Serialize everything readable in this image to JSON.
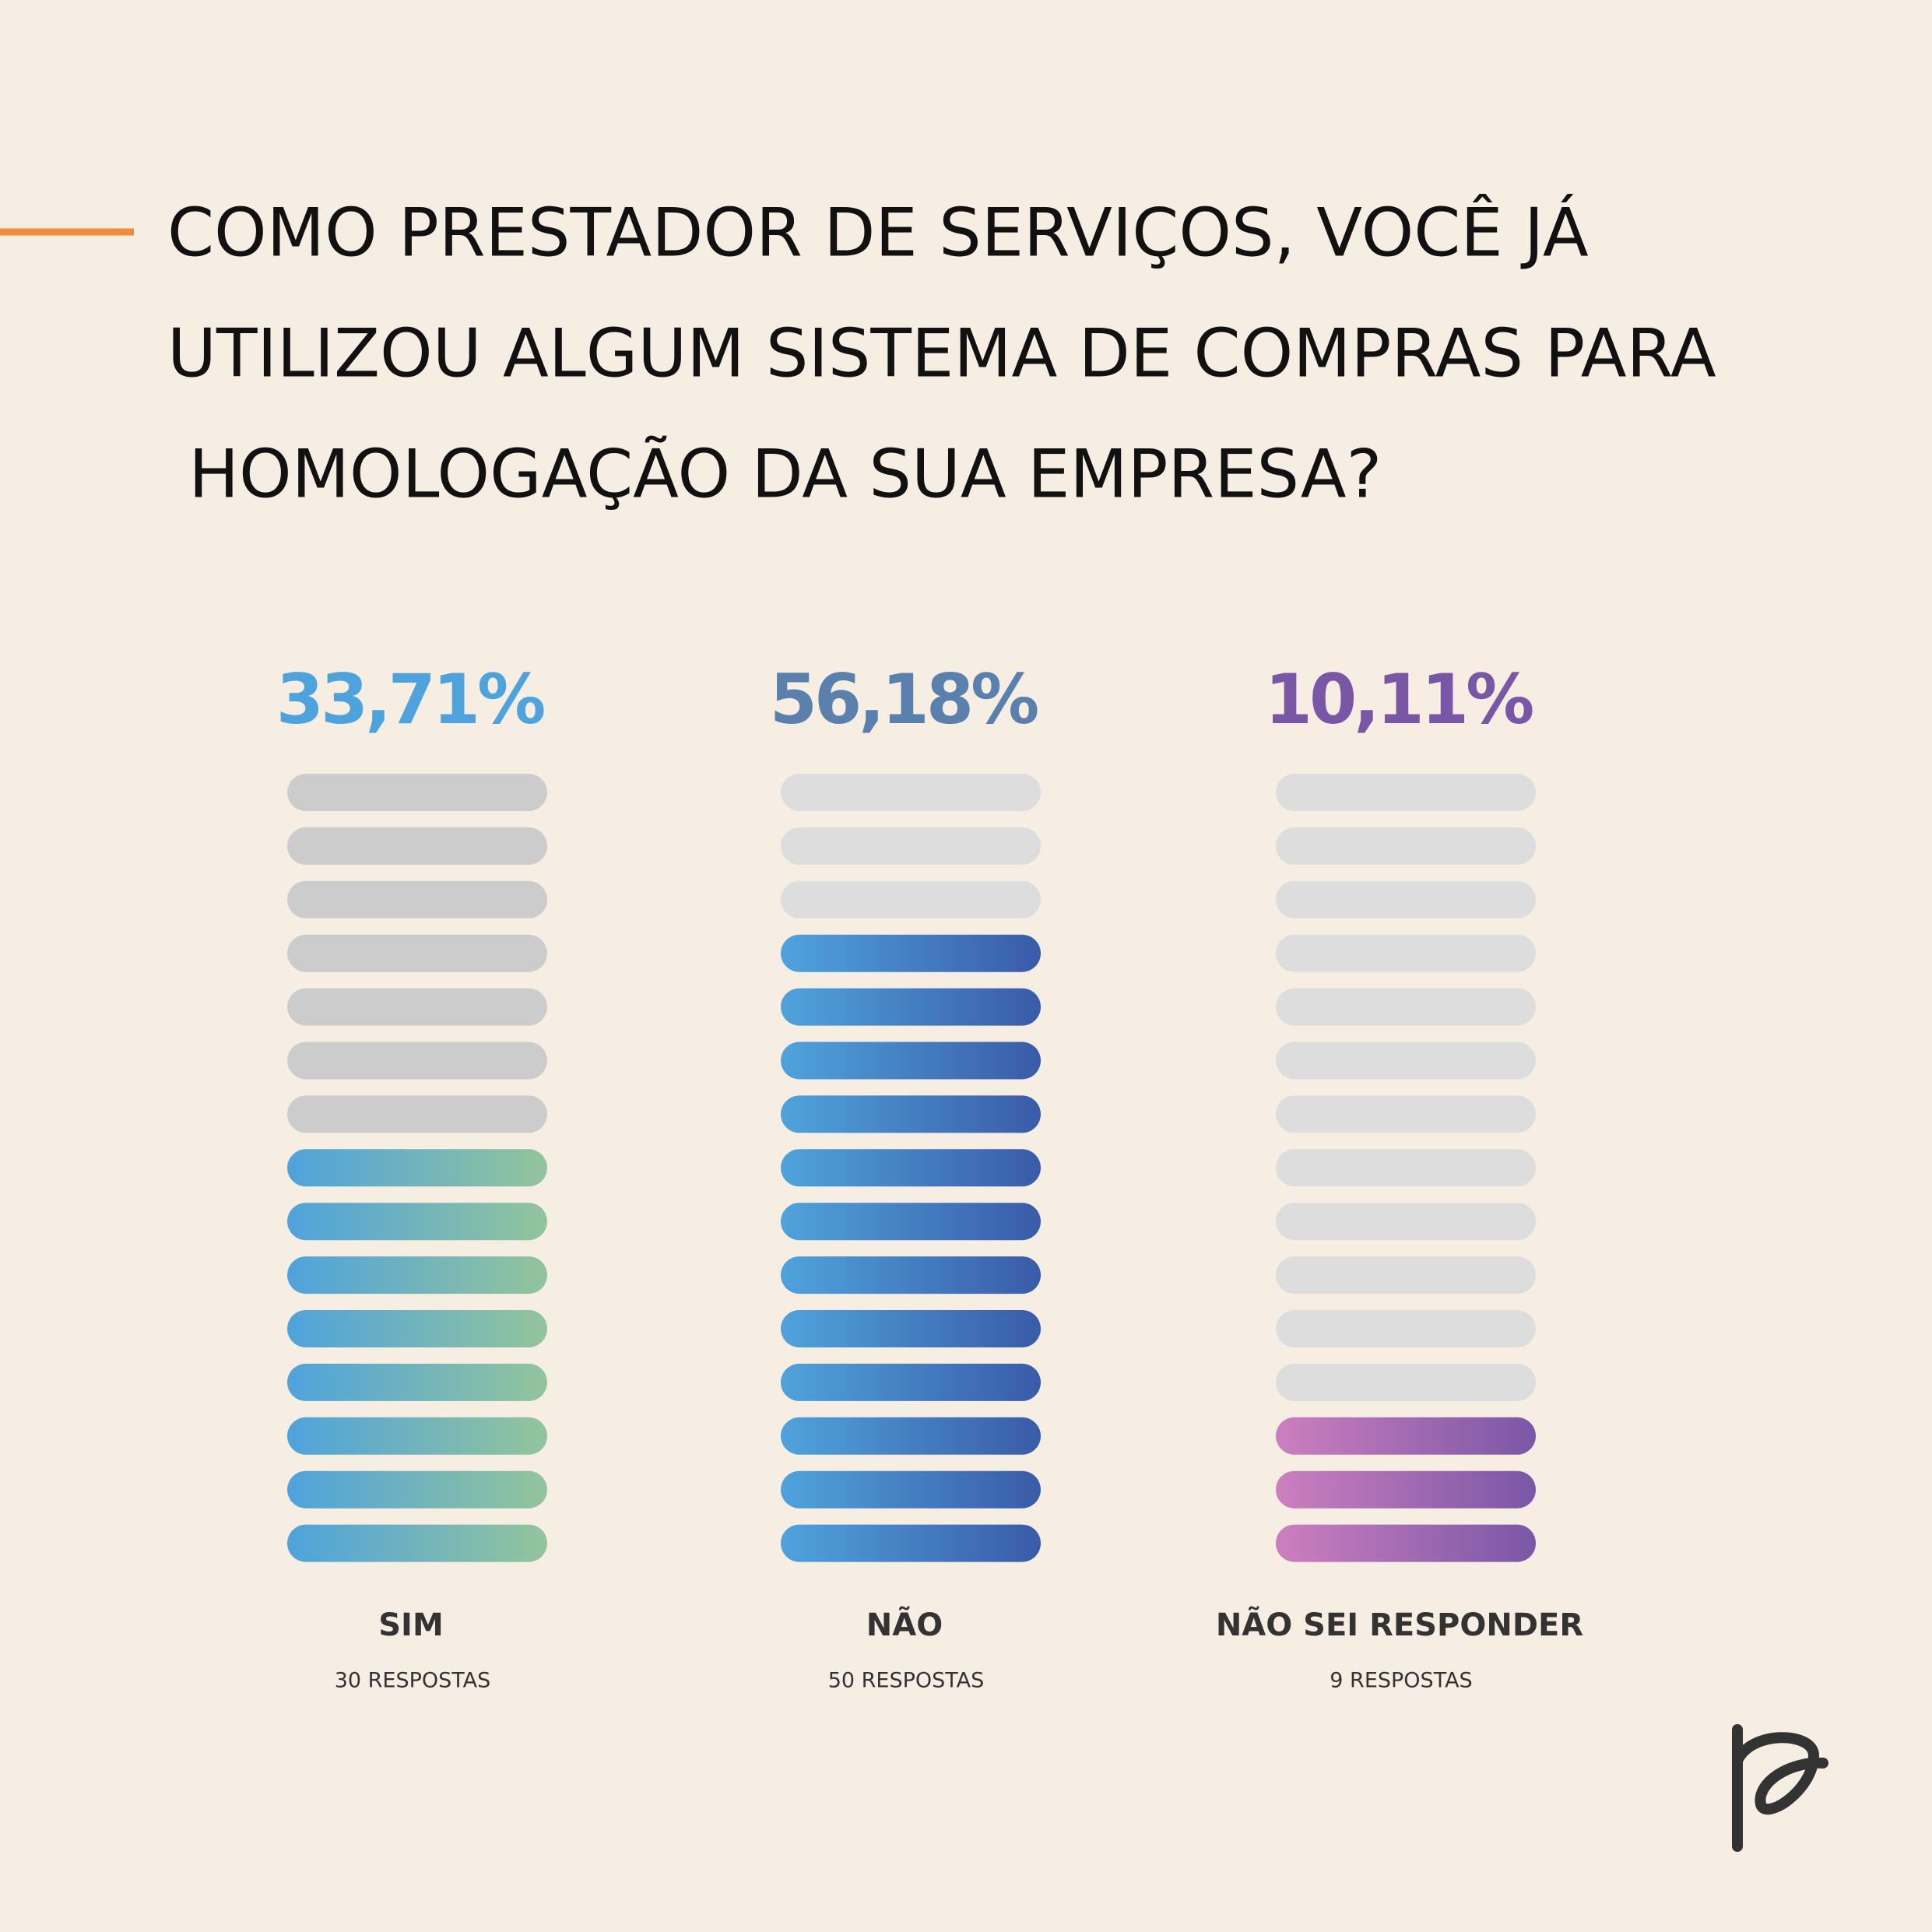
{
  "chart_data": {
    "type": "pictogram",
    "title": [
      "COMO PRESTADOR DE SERVIÇOS, VOCÊ JÁ",
      "UTILIZOU ALGUM SISTEMA DE COMPRAS PARA",
      " HOMOLOGAÇÃO DA SUA EMPRESA?"
    ],
    "categories": [
      "SIM",
      "NÃO",
      "NÃO SEI RESPONDER"
    ],
    "values": [
      33.71,
      56.18,
      10.11
    ],
    "value_labels": [
      "33,71%",
      "56,18%",
      "10,11%"
    ],
    "response_labels": [
      "30 RESPOSTAS",
      "50 RESPOSTAS",
      "9 RESPOSTAS"
    ],
    "segments": 15,
    "filled_segments": [
      8,
      12,
      3
    ],
    "label_colors": [
      "#4fa3dc",
      "#5a80ad",
      "#7a57a6"
    ],
    "gradients": [
      [
        "#4fa3dc",
        "#93c49c"
      ],
      [
        "#4fa3dc",
        "#3a5ba8"
      ],
      [
        "#cc7fbf",
        "#7a57a6"
      ]
    ],
    "empty_colors": [
      "#cccccc",
      "#dddddd",
      "#dddddd"
    ]
  }
}
